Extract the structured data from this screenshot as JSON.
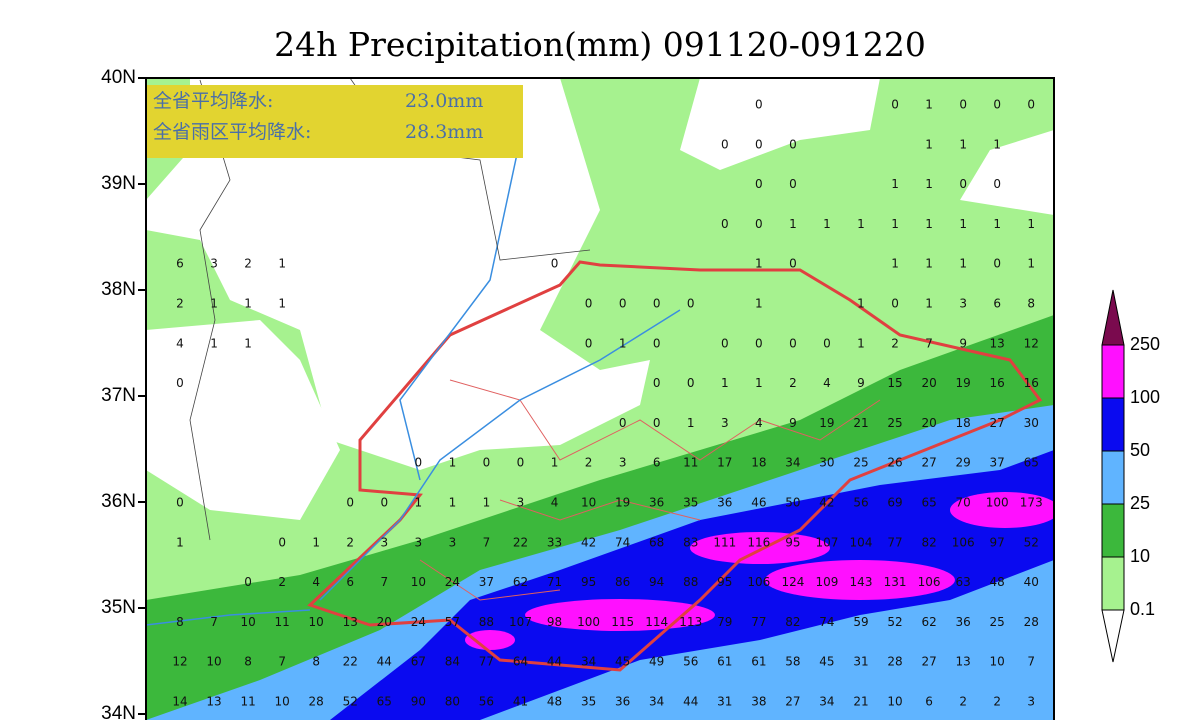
{
  "header": {
    "title": "24h Precipitation(mm) 091120-091220"
  },
  "info_box": {
    "rows": [
      [
        "全省平均降水:",
        "23.0mm"
      ],
      [
        "全省雨区平均降水:",
        "28.3mm"
      ]
    ]
  },
  "lat_ticks": [
    {
      "value": 40,
      "label": "40N"
    },
    {
      "value": 39,
      "label": "39N"
    },
    {
      "value": 38,
      "label": "38N"
    },
    {
      "value": 37,
      "label": "37N"
    },
    {
      "value": 36,
      "label": "36N"
    },
    {
      "value": 35,
      "label": "35N"
    },
    {
      "value": 34,
      "label": "34N"
    }
  ],
  "legend": {
    "labels": [
      "250",
      "100",
      "50",
      "25",
      "10",
      "0.1"
    ],
    "colors": [
      "#7a0a4e",
      "#ff10ff",
      "#0a0af0",
      "#60b4ff",
      "#3cb83c",
      "#a6f28f",
      "#ffffff"
    ]
  },
  "stations": {
    "rows": [
      [
        null,
        null,
        null,
        null,
        null,
        null,
        null,
        null,
        null,
        null,
        null,
        null,
        null,
        null,
        null,
        null,
        null,
        0,
        null,
        null,
        null,
        0,
        1,
        0,
        0,
        0
      ],
      [
        null,
        null,
        null,
        null,
        null,
        null,
        null,
        null,
        null,
        null,
        null,
        null,
        null,
        null,
        null,
        null,
        0,
        0,
        0,
        null,
        null,
        null,
        1,
        1,
        1,
        null
      ],
      [
        null,
        null,
        null,
        null,
        null,
        null,
        null,
        null,
        null,
        null,
        null,
        null,
        null,
        null,
        null,
        null,
        null,
        0,
        0,
        null,
        null,
        1,
        1,
        0,
        0,
        null
      ],
      [
        null,
        null,
        null,
        null,
        null,
        null,
        null,
        null,
        null,
        null,
        null,
        null,
        null,
        null,
        null,
        null,
        0,
        0,
        1,
        1,
        1,
        1,
        1,
        1,
        1,
        1
      ],
      [
        6,
        3,
        2,
        1,
        null,
        null,
        null,
        null,
        null,
        null,
        null,
        0,
        null,
        null,
        null,
        null,
        null,
        1,
        0,
        null,
        null,
        1,
        1,
        1,
        0,
        1
      ],
      [
        2,
        1,
        1,
        1,
        null,
        null,
        null,
        null,
        null,
        null,
        null,
        null,
        0,
        0,
        0,
        0,
        null,
        1,
        null,
        null,
        1,
        0,
        1,
        3,
        6,
        8
      ],
      [
        4,
        1,
        1,
        null,
        null,
        null,
        null,
        null,
        null,
        null,
        null,
        null,
        0,
        1,
        0,
        null,
        0,
        0,
        0,
        0,
        1,
        2,
        7,
        9,
        13,
        12
      ],
      [
        0,
        null,
        null,
        null,
        null,
        null,
        null,
        null,
        null,
        null,
        null,
        null,
        null,
        null,
        0,
        0,
        1,
        1,
        2,
        4,
        9,
        15,
        20,
        19,
        16,
        16
      ],
      [
        null,
        null,
        null,
        null,
        null,
        null,
        null,
        null,
        null,
        null,
        null,
        null,
        null,
        0,
        0,
        1,
        3,
        4,
        9,
        19,
        21,
        25,
        20,
        18,
        27,
        30
      ],
      [
        null,
        null,
        null,
        null,
        null,
        null,
        null,
        0,
        1,
        0,
        0,
        1,
        2,
        3,
        6,
        11,
        17,
        18,
        34,
        30,
        25,
        26,
        27,
        29,
        37,
        65
      ],
      [
        0,
        null,
        null,
        null,
        null,
        0,
        0,
        1,
        1,
        1,
        3,
        4,
        10,
        19,
        36,
        35,
        36,
        46,
        50,
        42,
        56,
        69,
        65,
        70,
        100,
        173
      ],
      [
        1,
        null,
        null,
        0,
        1,
        2,
        3,
        3,
        3,
        7,
        22,
        33,
        42,
        74,
        68,
        83,
        111,
        116,
        95,
        107,
        104,
        77,
        82,
        106,
        97,
        52
      ],
      [
        null,
        null,
        0,
        2,
        4,
        6,
        7,
        10,
        24,
        37,
        62,
        71,
        95,
        86,
        94,
        88,
        95,
        106,
        124,
        109,
        143,
        131,
        106,
        63,
        48,
        40
      ],
      [
        8,
        7,
        10,
        11,
        10,
        13,
        20,
        24,
        57,
        88,
        107,
        98,
        100,
        115,
        114,
        113,
        79,
        77,
        82,
        74,
        59,
        52,
        62,
        36,
        25,
        28
      ],
      [
        12,
        10,
        8,
        7,
        8,
        22,
        44,
        67,
        84,
        77,
        64,
        44,
        34,
        45,
        49,
        56,
        61,
        61,
        58,
        45,
        31,
        28,
        27,
        13,
        10,
        7
      ],
      [
        14,
        13,
        11,
        10,
        28,
        52,
        65,
        90,
        80,
        56,
        41,
        48,
        35,
        36,
        34,
        44,
        31,
        38,
        27,
        34,
        21,
        10,
        6,
        2,
        2,
        3
      ]
    ]
  }
}
